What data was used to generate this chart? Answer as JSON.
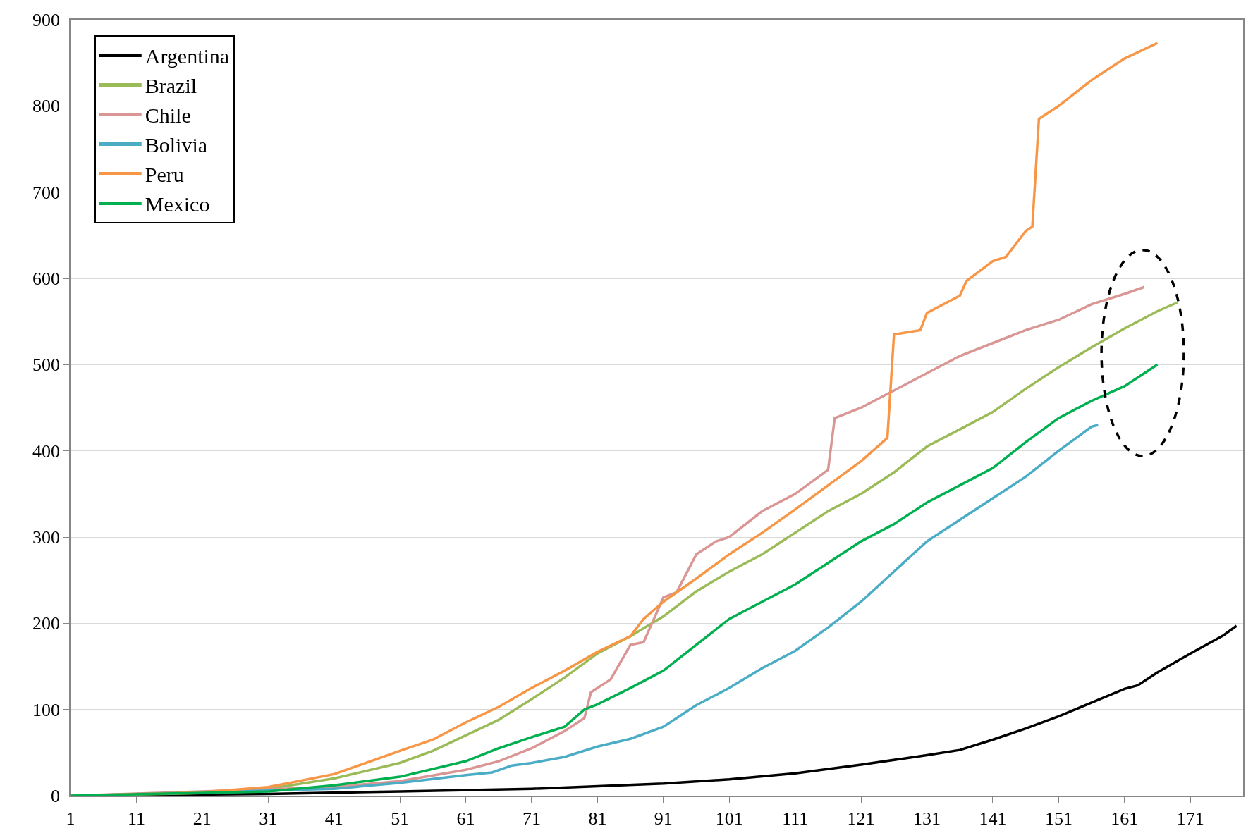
{
  "chart_data": {
    "type": "line",
    "xlim": [
      1,
      179
    ],
    "xticks": [
      1,
      11,
      21,
      31,
      41,
      51,
      61,
      71,
      81,
      91,
      101,
      111,
      121,
      131,
      141,
      151,
      161,
      171
    ],
    "ylim": [
      0,
      900
    ],
    "yticks": [
      0,
      100,
      200,
      300,
      400,
      500,
      600,
      700,
      800,
      900
    ],
    "grid": "y",
    "legend": "top left",
    "line_style": "solid",
    "marker": "none",
    "series": [
      {
        "name": "Argentina",
        "color": "#000000",
        "x": [
          1,
          31,
          51,
          71,
          91,
          101,
          111,
          121,
          131,
          136,
          141,
          146,
          151,
          156,
          161,
          163,
          166,
          171,
          176,
          178
        ],
        "values": [
          0,
          2,
          5,
          8,
          14,
          19,
          26,
          36,
          47,
          53,
          65,
          78,
          92,
          108,
          124,
          128,
          143,
          165,
          186,
          197
        ]
      },
      {
        "name": "Brazil",
        "color": "#9bbb59",
        "x": [
          1,
          21,
          31,
          41,
          51,
          56,
          61,
          66,
          71,
          76,
          81,
          86,
          91,
          96,
          101,
          106,
          111,
          116,
          121,
          126,
          131,
          136,
          141,
          146,
          151,
          156,
          161,
          166,
          169
        ],
        "values": [
          0,
          3,
          8,
          20,
          38,
          52,
          70,
          88,
          112,
          137,
          165,
          185,
          208,
          237,
          260,
          280,
          305,
          330,
          350,
          375,
          405,
          425,
          445,
          472,
          497,
          520,
          542,
          562,
          572
        ]
      },
      {
        "name": "Chile",
        "color": "#d99694",
        "x": [
          1,
          41,
          51,
          61,
          66,
          71,
          76,
          79,
          80,
          83,
          86,
          88,
          91,
          93,
          96,
          99,
          101,
          106,
          111,
          116,
          117,
          121,
          126,
          131,
          136,
          141,
          146,
          151,
          156,
          161,
          164
        ],
        "values": [
          0,
          10,
          17,
          30,
          40,
          55,
          75,
          90,
          120,
          135,
          175,
          178,
          230,
          236,
          280,
          295,
          300,
          330,
          350,
          378,
          438,
          450,
          470,
          490,
          510,
          525,
          540,
          552,
          570,
          582,
          590
        ]
      },
      {
        "name": "Bolivia",
        "color": "#4bacc6",
        "x": [
          1,
          41,
          51,
          61,
          65,
          68,
          71,
          76,
          81,
          86,
          91,
          96,
          101,
          106,
          111,
          116,
          121,
          126,
          131,
          136,
          141,
          146,
          151,
          156,
          157
        ],
        "values": [
          0,
          8,
          15,
          24,
          27,
          35,
          38,
          45,
          57,
          66,
          80,
          105,
          125,
          148,
          168,
          195,
          225,
          260,
          295,
          320,
          345,
          370,
          400,
          428,
          430
        ]
      },
      {
        "name": "Peru",
        "color": "#f79646",
        "x": [
          1,
          21,
          31,
          41,
          51,
          56,
          61,
          66,
          71,
          76,
          81,
          86,
          88,
          91,
          96,
          101,
          106,
          111,
          116,
          121,
          125,
          126,
          130,
          131,
          136,
          137,
          141,
          143,
          146,
          147,
          148,
          151,
          156,
          161,
          166
        ],
        "values": [
          0,
          4,
          10,
          25,
          52,
          65,
          85,
          103,
          125,
          145,
          167,
          185,
          205,
          225,
          252,
          280,
          305,
          332,
          360,
          388,
          415,
          535,
          540,
          560,
          580,
          597,
          620,
          625,
          655,
          660,
          785,
          800,
          830,
          855,
          873
        ]
      },
      {
        "name": "Mexico",
        "color": "#00b050",
        "x": [
          1,
          31,
          41,
          51,
          61,
          66,
          71,
          76,
          79,
          81,
          86,
          91,
          96,
          101,
          106,
          111,
          116,
          121,
          126,
          131,
          136,
          141,
          146,
          151,
          156,
          161,
          166
        ],
        "values": [
          0,
          5,
          12,
          22,
          40,
          55,
          68,
          80,
          100,
          106,
          125,
          145,
          175,
          205,
          225,
          245,
          270,
          295,
          315,
          340,
          360,
          380,
          410,
          438,
          458,
          475,
          500
        ]
      }
    ]
  }
}
